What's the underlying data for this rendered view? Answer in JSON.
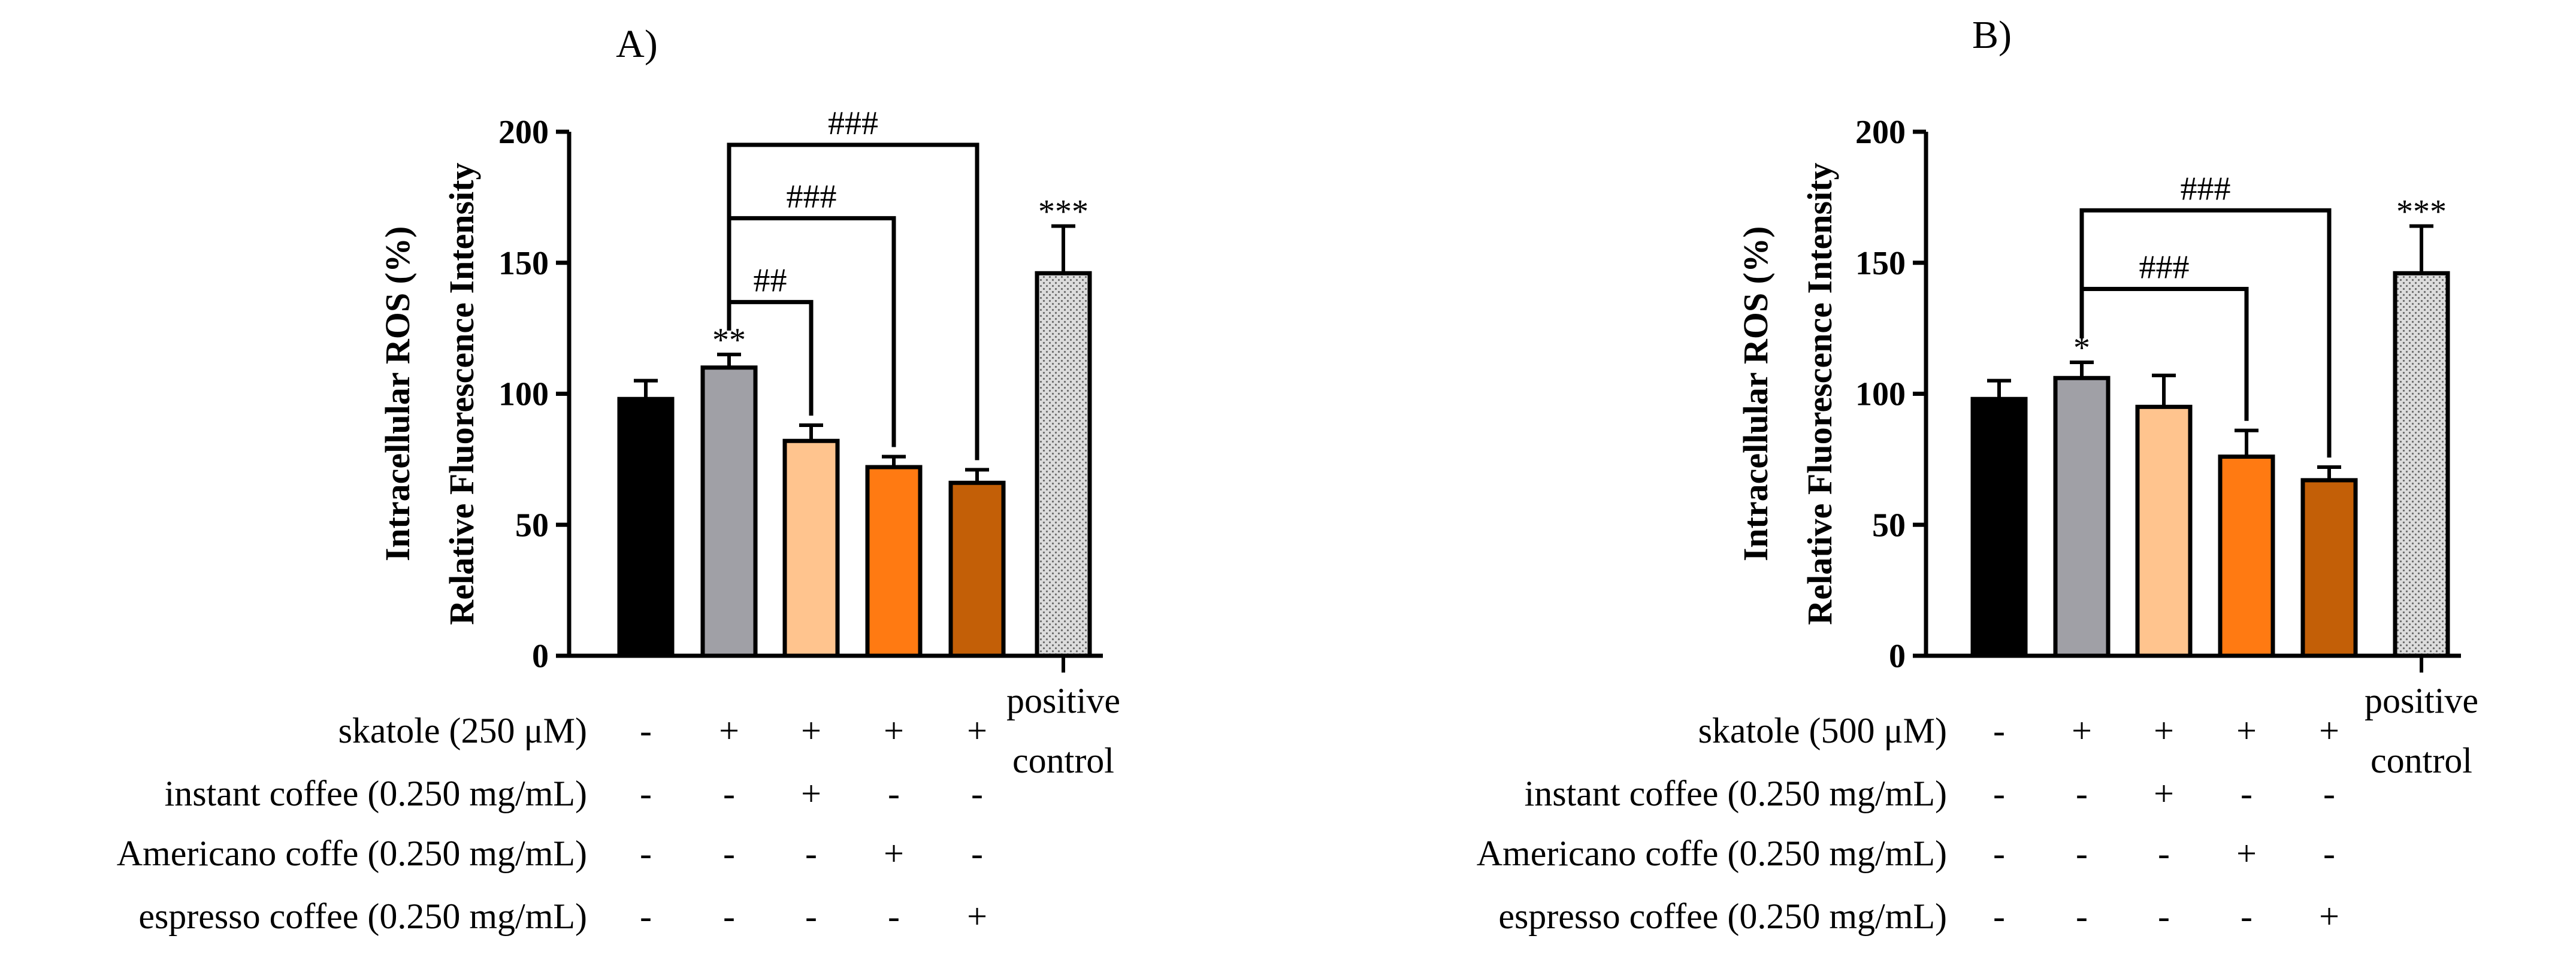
{
  "colors": {
    "ctrl": "#000000",
    "skatole": "#a0a0a6",
    "instant": "#ffc48e",
    "americano": "#ff7a12",
    "espresso": "#c35f07",
    "positive": "#d4d4d4",
    "line": "#000000"
  },
  "chart_data": [
    {
      "type": "bar",
      "title": "A)",
      "ylabel": [
        "Intracellular ROS (%)",
        "Relative Fluorescence Intensity"
      ],
      "ylim": [
        0,
        200
      ],
      "yticks": [
        0,
        50,
        100,
        150,
        200
      ],
      "categories": [
        "control",
        "skatole",
        "skatole + instant coffee",
        "skatole + Americano coffe",
        "skatole + espresso coffee",
        "positive control"
      ],
      "values": [
        98,
        110,
        82,
        72,
        66,
        146
      ],
      "errors": [
        7,
        5,
        6,
        4,
        5,
        18
      ],
      "fills": [
        "ctrl",
        "skatole",
        "instant",
        "americano",
        "espresso",
        "positive"
      ],
      "stars": [
        "",
        "**",
        "",
        "",
        "",
        "***"
      ],
      "brackets": [
        {
          "from": 1,
          "to": 2,
          "top": 135,
          "label": "##"
        },
        {
          "from": 1,
          "to": 3,
          "top": 167,
          "label": "###"
        },
        {
          "from": 1,
          "to": 4,
          "top": 195,
          "label": "###"
        }
      ],
      "condition_rows": [
        {
          "label": "skatole (250 μM)",
          "signs": [
            "-",
            "+",
            "+",
            "+",
            "+"
          ]
        },
        {
          "label": "instant coffee (0.250 mg/mL)",
          "signs": [
            "-",
            "-",
            "+",
            "-",
            "-"
          ]
        },
        {
          "label": "Americano coffe (0.250 mg/mL)",
          "signs": [
            "-",
            "-",
            "-",
            "+",
            "-"
          ]
        },
        {
          "label": "espresso coffee (0.250 mg/mL)",
          "signs": [
            "-",
            "-",
            "-",
            "-",
            "+"
          ]
        }
      ],
      "positive_label": [
        "positive",
        "control"
      ]
    },
    {
      "type": "bar",
      "title": "B)",
      "ylabel": [
        "Intracellular ROS (%)",
        "Relative Fluorescence Intensity"
      ],
      "ylim": [
        0,
        200
      ],
      "yticks": [
        0,
        50,
        100,
        150,
        200
      ],
      "categories": [
        "control",
        "skatole",
        "skatole + instant coffee",
        "skatole + Americano coffe",
        "skatole + espresso coffee",
        "positive control"
      ],
      "values": [
        98,
        106,
        95,
        76,
        67,
        146
      ],
      "errors": [
        7,
        6,
        12,
        10,
        5,
        18
      ],
      "fills": [
        "ctrl",
        "skatole",
        "instant",
        "americano",
        "espresso",
        "positive"
      ],
      "stars": [
        "",
        "*",
        "",
        "",
        "",
        "***"
      ],
      "brackets": [
        {
          "from": 1,
          "to": 3,
          "top": 140,
          "label": "###"
        },
        {
          "from": 1,
          "to": 4,
          "top": 170,
          "label": "###"
        }
      ],
      "condition_rows": [
        {
          "label": "skatole (500 μM)",
          "signs": [
            "-",
            "+",
            "+",
            "+",
            "+"
          ]
        },
        {
          "label": "instant coffee (0.250 mg/mL)",
          "signs": [
            "-",
            "-",
            "+",
            "-",
            "-"
          ]
        },
        {
          "label": "Americano coffe (0.250 mg/mL)",
          "signs": [
            "-",
            "-",
            "-",
            "+",
            "-"
          ]
        },
        {
          "label": "espresso coffee (0.250 mg/mL)",
          "signs": [
            "-",
            "-",
            "-",
            "-",
            "+"
          ]
        }
      ],
      "positive_label": [
        "positive",
        "control"
      ]
    }
  ]
}
